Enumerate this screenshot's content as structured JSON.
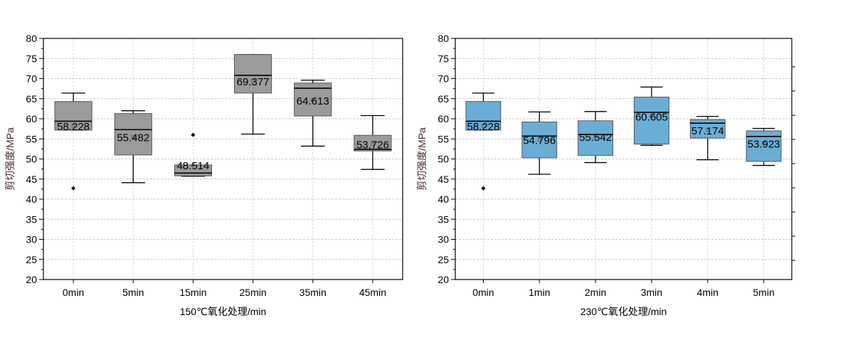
{
  "chart_data": [
    {
      "type": "box",
      "xlabel": "150℃氧化处理/min",
      "ylabel": "剪切强度/MPa",
      "ylim": [
        20,
        80
      ],
      "yticks": [
        20,
        25,
        30,
        35,
        40,
        45,
        50,
        55,
        60,
        65,
        70,
        75,
        80
      ],
      "grid": true,
      "box_color": "#9b9b9b",
      "categories": [
        "0min",
        "5min",
        "15min",
        "25min",
        "35min",
        "45min"
      ],
      "boxes": [
        {
          "whisker_low": 57.2,
          "q1": 57.2,
          "median": 59.4,
          "q3": 64.3,
          "whisker_high": 66.4,
          "mean": 58.228,
          "mean_label": "58.228",
          "outliers": [
            42.7
          ]
        },
        {
          "whisker_low": 44.1,
          "q1": 51.0,
          "median": 57.3,
          "q3": 61.3,
          "whisker_high": 62.0,
          "mean": 55.482,
          "mean_label": "55.482",
          "outliers": []
        },
        {
          "whisker_low": 45.7,
          "q1": 45.8,
          "median": 46.5,
          "q3": 48.5,
          "whisker_high": 48.5,
          "mean": 48.514,
          "mean_label": "48.514",
          "outliers": [
            56.0
          ]
        },
        {
          "whisker_low": 56.2,
          "q1": 66.4,
          "median": 70.8,
          "q3": 76.0,
          "whisker_high": 76.0,
          "mean": 69.377,
          "mean_label": "69.377",
          "outliers": []
        },
        {
          "whisker_low": 53.2,
          "q1": 60.7,
          "median": 67.6,
          "q3": 68.9,
          "whisker_high": 69.6,
          "mean": 64.613,
          "mean_label": "64.613",
          "outliers": []
        },
        {
          "whisker_low": 47.4,
          "q1": 52.0,
          "median": 52.4,
          "q3": 55.9,
          "whisker_high": 60.8,
          "mean": 53.726,
          "mean_label": "53.726",
          "outliers": []
        }
      ]
    },
    {
      "type": "box",
      "xlabel": "230℃氧化处理/min",
      "ylabel": "剪切强度/MPa",
      "ylim": [
        20,
        80
      ],
      "yticks": [
        20,
        25,
        30,
        35,
        40,
        45,
        50,
        55,
        60,
        65,
        70,
        75,
        80
      ],
      "grid": true,
      "box_color": "#6aaed6",
      "categories": [
        "0min",
        "1min",
        "2min",
        "3min",
        "4min",
        "5min"
      ],
      "boxes": [
        {
          "whisker_low": 57.2,
          "q1": 57.2,
          "median": 59.4,
          "q3": 64.3,
          "whisker_high": 66.4,
          "mean": 58.228,
          "mean_label": "58.228",
          "outliers": [
            42.7
          ]
        },
        {
          "whisker_low": 46.2,
          "q1": 50.3,
          "median": 55.7,
          "q3": 59.2,
          "whisker_high": 61.7,
          "mean": 54.796,
          "mean_label": "54.796",
          "outliers": []
        },
        {
          "whisker_low": 49.1,
          "q1": 50.9,
          "median": 56.1,
          "q3": 59.5,
          "whisker_high": 61.8,
          "mean": 55.542,
          "mean_label": "55.542",
          "outliers": []
        },
        {
          "whisker_low": 53.4,
          "q1": 53.7,
          "median": 61.6,
          "q3": 65.4,
          "whisker_high": 67.9,
          "mean": 60.605,
          "mean_label": "60.605",
          "outliers": []
        },
        {
          "whisker_low": 49.8,
          "q1": 55.2,
          "median": 58.9,
          "q3": 59.8,
          "whisker_high": 60.6,
          "mean": 57.174,
          "mean_label": "57.174",
          "outliers": []
        },
        {
          "whisker_low": 48.4,
          "q1": 49.4,
          "median": 55.6,
          "q3": 57.0,
          "whisker_high": 57.6,
          "mean": 53.923,
          "mean_label": "53.923",
          "outliers": []
        }
      ]
    }
  ]
}
